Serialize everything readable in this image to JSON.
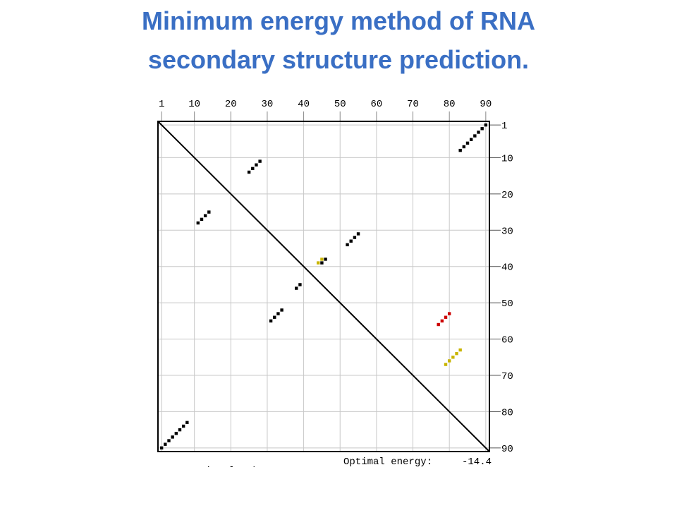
{
  "chart_data": {
    "type": "scatter",
    "title": "Minimum energy method of RNA",
    "subtitle": "secondary structure prediction.",
    "xlim": [
      0,
      91
    ],
    "ylim": [
      0,
      91
    ],
    "xticks": [
      1,
      10,
      20,
      30,
      40,
      50,
      60,
      70,
      80,
      90
    ],
    "yticks": [
      1,
      10,
      20,
      30,
      40,
      50,
      60,
      70,
      80,
      90
    ],
    "grid": true,
    "annotations": [
      "Optimal energy:",
      "-14.4",
      "Lower Triangle Shows"
    ],
    "series": [
      {
        "color": "#000000",
        "x": [
          83,
          84,
          85,
          86,
          87,
          88,
          89,
          90,
          1,
          2,
          3,
          4,
          5,
          6,
          7,
          8,
          25,
          26,
          27,
          28,
          11,
          12,
          13,
          14,
          52,
          53,
          54,
          55,
          31,
          32,
          33,
          34,
          45,
          46,
          38,
          39
        ],
        "values": [
          8,
          7,
          6,
          5,
          4,
          3,
          2,
          1,
          90,
          89,
          88,
          87,
          86,
          85,
          84,
          83,
          14,
          13,
          12,
          11,
          28,
          27,
          26,
          25,
          34,
          33,
          32,
          31,
          55,
          54,
          53,
          52,
          39,
          38,
          46,
          45
        ]
      },
      {
        "color": "#cc0000",
        "x": [
          77,
          78,
          79,
          80
        ],
        "values": [
          56,
          55,
          54,
          53
        ]
      },
      {
        "color": "#c8b400",
        "x": [
          44,
          45,
          79,
          80,
          81,
          82,
          83
        ],
        "values": [
          39,
          38,
          67,
          66,
          65,
          64,
          63
        ]
      }
    ]
  }
}
